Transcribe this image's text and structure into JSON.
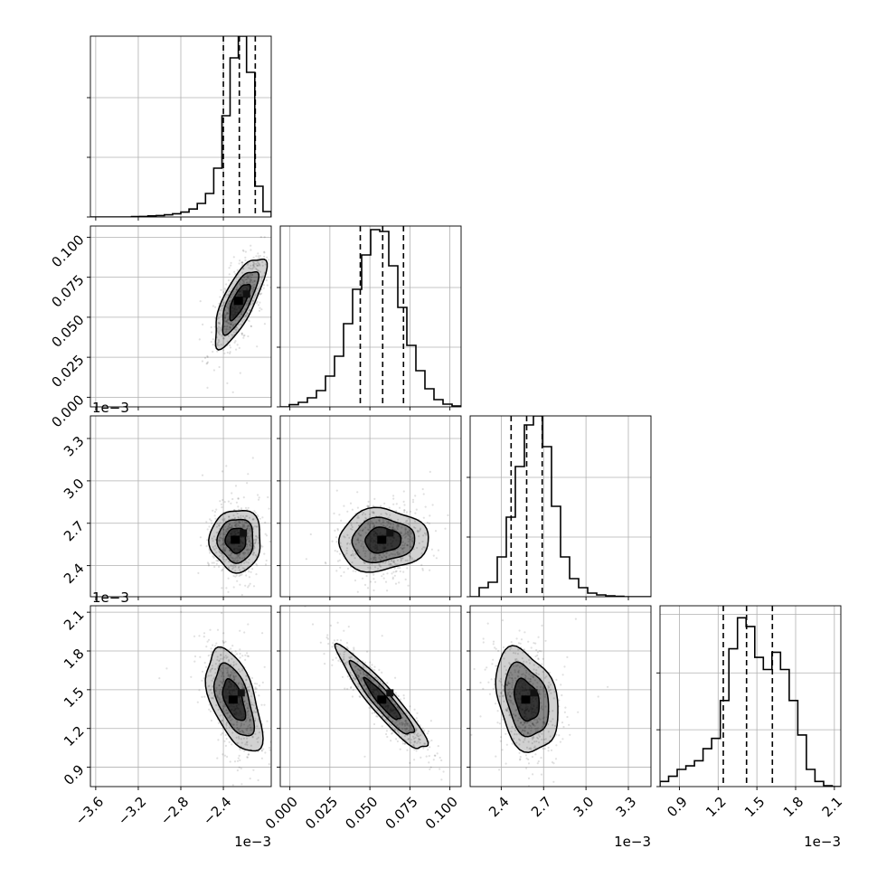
{
  "chart_data": {
    "type": "corner",
    "parameters": [
      {
        "range": [
          -0.00365,
          -0.00195
        ],
        "ticks": [
          -0.0036,
          -0.0032,
          -0.0028,
          -0.0024
        ],
        "tick_labels": [
          "−3.6",
          "−3.2",
          "−2.8",
          "−2.4"
        ],
        "offset_text": "1e−3",
        "quantiles": [
          -0.0024,
          -0.00225,
          -0.0021
        ],
        "hist_bins": [
          -0.00365,
          -0.00195
        ],
        "hist_counts": [
          0,
          0,
          0,
          0,
          0,
          0.002,
          0.003,
          0.006,
          0.008,
          0.012,
          0.018,
          0.027,
          0.044,
          0.075,
          0.13,
          0.27,
          0.56,
          0.88,
          1.0,
          0.8,
          0.17,
          0.03
        ],
        "hist_ylim": [
          0,
          1.0
        ]
      },
      {
        "range": [
          -0.006,
          0.107
        ],
        "ticks": [
          0.0,
          0.025,
          0.05,
          0.075,
          0.1
        ],
        "tick_labels": [
          "0.000",
          "0.025",
          "0.050",
          "0.075",
          "0.100"
        ],
        "offset_text": "",
        "quantiles": [
          0.044,
          0.058,
          0.071
        ],
        "hist_bins": [
          -0.006,
          0.107
        ],
        "hist_counts": [
          0,
          0.012,
          0.025,
          0.05,
          0.09,
          0.17,
          0.28,
          0.46,
          0.65,
          0.84,
          0.98,
          0.97,
          0.78,
          0.55,
          0.34,
          0.2,
          0.1,
          0.04,
          0.015,
          0.005
        ],
        "hist_ylim": [
          0,
          1.0
        ]
      },
      {
        "range": [
          0.00218,
          0.00346
        ],
        "ticks": [
          0.0024,
          0.0027,
          0.003,
          0.0033
        ],
        "tick_labels": [
          "2.4",
          "2.7",
          "3.0",
          "3.3"
        ],
        "offset_text": "1e−3",
        "quantiles": [
          0.00247,
          0.00258,
          0.00269
        ],
        "hist_bins": [
          0.00218,
          0.00346
        ],
        "hist_counts": [
          0,
          0.05,
          0.08,
          0.22,
          0.44,
          0.72,
          0.95,
          1.0,
          0.83,
          0.5,
          0.22,
          0.1,
          0.05,
          0.02,
          0.01,
          0.005,
          0.002,
          0,
          0,
          0
        ],
        "hist_ylim": [
          0,
          1.0
        ]
      },
      {
        "range": [
          0.00075,
          0.00215
        ],
        "ticks": [
          0.0009,
          0.0012,
          0.0015,
          0.0018,
          0.0021
        ],
        "tick_labels": [
          "0.9",
          "1.2",
          "1.5",
          "1.8",
          "2.1"
        ],
        "offset_text": "1e−3",
        "quantiles": [
          0.00124,
          0.00142,
          0.00162
        ],
        "hist_bins": [
          0.00075,
          0.00215
        ],
        "hist_counts": [
          0.03,
          0.06,
          0.1,
          0.12,
          0.15,
          0.22,
          0.28,
          0.5,
          0.8,
          0.98,
          0.93,
          0.75,
          0.68,
          0.78,
          0.68,
          0.5,
          0.3,
          0.1,
          0.03,
          0.005,
          0
        ],
        "hist_ylim": [
          0,
          1.05
        ]
      }
    ],
    "pairs": [
      {
        "row": 1,
        "col": 0,
        "mean": [
          -0.00225,
          0.06
        ],
        "std": [
          0.00012,
          0.014
        ],
        "corr": 0.75
      },
      {
        "row": 2,
        "col": 0,
        "mean": [
          -0.00228,
          0.00258
        ],
        "std": [
          0.00012,
          0.00011
        ],
        "corr": 0.0
      },
      {
        "row": 2,
        "col": 1,
        "mean": [
          0.058,
          0.00258
        ],
        "std": [
          0.014,
          0.00011
        ],
        "corr": 0.05
      },
      {
        "row": 3,
        "col": 0,
        "mean": [
          -0.0023,
          0.00142
        ],
        "std": [
          0.00013,
          0.0002
        ],
        "corr": -0.55
      },
      {
        "row": 3,
        "col": 1,
        "mean": [
          0.058,
          0.00142
        ],
        "std": [
          0.014,
          0.0002
        ],
        "corr": -0.93
      },
      {
        "row": 3,
        "col": 2,
        "mean": [
          0.00258,
          0.00142
        ],
        "std": [
          0.00011,
          0.0002
        ],
        "corr": -0.3
      }
    ],
    "grid": true,
    "title": "",
    "labels": [
      "",
      "",
      "",
      ""
    ]
  }
}
